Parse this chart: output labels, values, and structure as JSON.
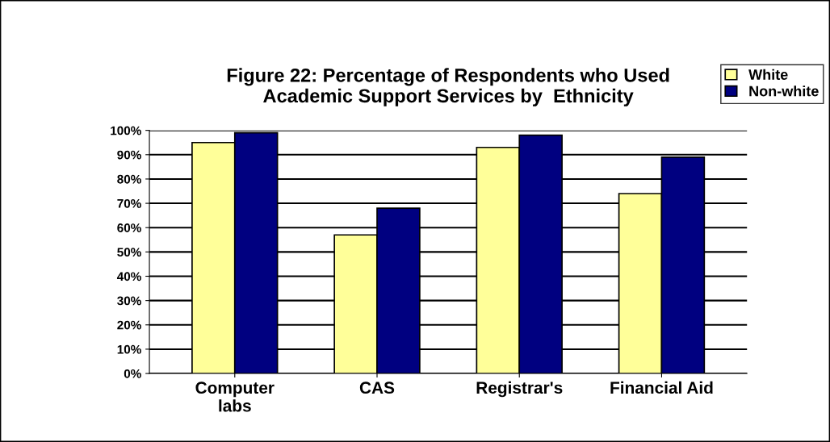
{
  "chart_data": {
    "type": "bar",
    "title": "Figure 22: Percentage of Respondents who Used\nAcademic Support Services by  Ethnicity",
    "categories": [
      "Computer\nlabs",
      "CAS",
      "Registrar's",
      "Financial Aid"
    ],
    "series": [
      {
        "name": "White",
        "color": "#ffff99",
        "values": [
          95,
          57,
          93,
          74
        ]
      },
      {
        "name": "Non-white",
        "color": "#000080",
        "values": [
          99,
          68,
          98,
          89
        ]
      }
    ],
    "ylim": [
      0,
      100
    ],
    "yticks": [
      {
        "value": 0,
        "label": "0%"
      },
      {
        "value": 10,
        "label": "10%"
      },
      {
        "value": 20,
        "label": "20%"
      },
      {
        "value": 30,
        "label": "30%"
      },
      {
        "value": 40,
        "label": "40%"
      },
      {
        "value": 50,
        "label": "50%"
      },
      {
        "value": 60,
        "label": "60%"
      },
      {
        "value": 70,
        "label": "70%"
      },
      {
        "value": 80,
        "label": "80%"
      },
      {
        "value": 90,
        "label": "90%"
      },
      {
        "value": 100,
        "label": "100%"
      }
    ],
    "grid": "y",
    "legend": "top right"
  }
}
